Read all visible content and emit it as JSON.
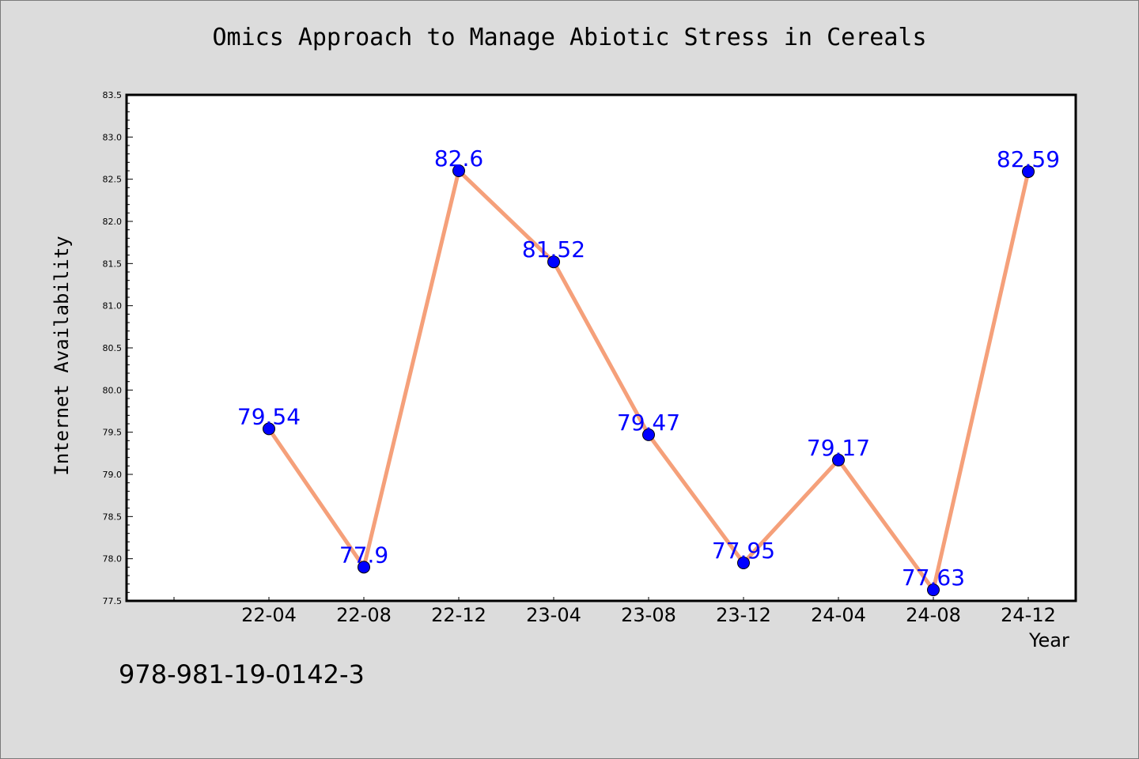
{
  "chart_data": {
    "type": "line",
    "title": "Omics Approach to Manage Abiotic Stress in Cereals",
    "xlabel": "Year",
    "ylabel": "Internet Availability",
    "categories": [
      "22-04",
      "22-08",
      "22-12",
      "23-04",
      "23-08",
      "23-12",
      "24-04",
      "24-08",
      "24-12"
    ],
    "values": [
      79.54,
      77.9,
      82.6,
      81.52,
      79.47,
      77.95,
      79.17,
      77.63,
      82.59
    ],
    "data_labels": [
      "79.54",
      "77.9",
      "82.6",
      "81.52",
      "79.47",
      "77.95",
      "79.17",
      "77.63",
      "82.59"
    ],
    "ylim": [
      77.5,
      83.5
    ],
    "yticks": [
      "77.5",
      "78.0",
      "78.5",
      "79.0",
      "79.5",
      "80.0",
      "80.5",
      "81.0",
      "81.5",
      "82.0",
      "82.5",
      "83.0",
      "83.5"
    ],
    "grid": false,
    "line_color": "#f5a07a",
    "marker_color": "#0000ff",
    "label_color": "#0000ff",
    "plot_bg": "#ffffff",
    "page_bg": "#dcdcdc"
  },
  "footer_text": "978-981-19-0142-3"
}
